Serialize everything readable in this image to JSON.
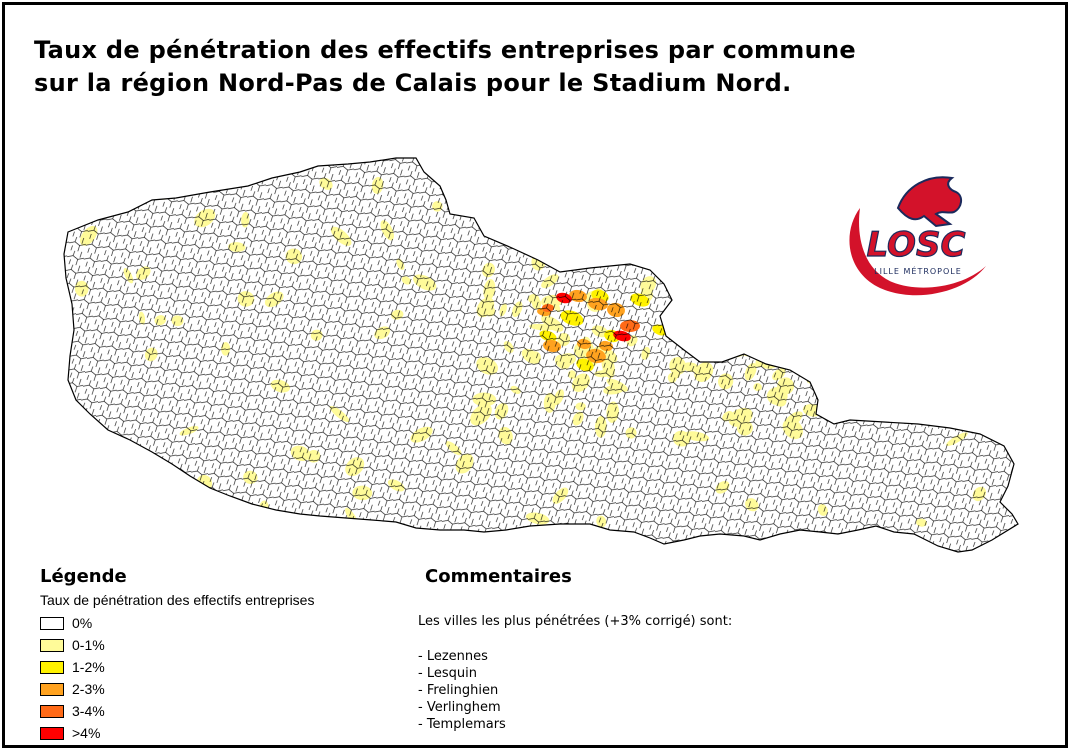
{
  "title": {
    "line1": "Taux de pénétration des effectifs entreprises par commune",
    "line2": "sur la région Nord-Pas de Calais pour le Stadium Nord."
  },
  "logo": {
    "text": "LOSC",
    "subtext": "LILLE MÉTROPOLE",
    "colors": {
      "red": "#d3122a",
      "blue": "#1b2a5c"
    }
  },
  "legend": {
    "title": "Légende",
    "subtitle": "Taux de pénétration des effectifs entreprises",
    "items": [
      {
        "label": "0%",
        "color": "#ffffff"
      },
      {
        "label": "0-1%",
        "color": "#fffb99"
      },
      {
        "label": "1-2%",
        "color": "#fff200"
      },
      {
        "label": "2-3%",
        "color": "#ffa21f"
      },
      {
        "label": "3-4%",
        "color": "#ff6a17"
      },
      {
        "label": ">4%",
        "color": "#ff0000"
      }
    ]
  },
  "comments": {
    "title": "Commentaires",
    "intro": "Les villes les plus pénétrées (+3% corrigé) sont:",
    "cities": [
      "- Lezennes",
      "- Lesquin",
      "- Frelinghien",
      "- Verlinghem",
      "- Templemars"
    ]
  },
  "map": {
    "region": "Nord-Pas de Calais",
    "colors": {
      "outline": "#000000",
      "none": "#ffffff",
      "pale": "#fffb99",
      "yellow": "#fff200",
      "orange": "#ffa21f",
      "dark_orange": "#ff6a17",
      "red": "#ff0000"
    }
  }
}
